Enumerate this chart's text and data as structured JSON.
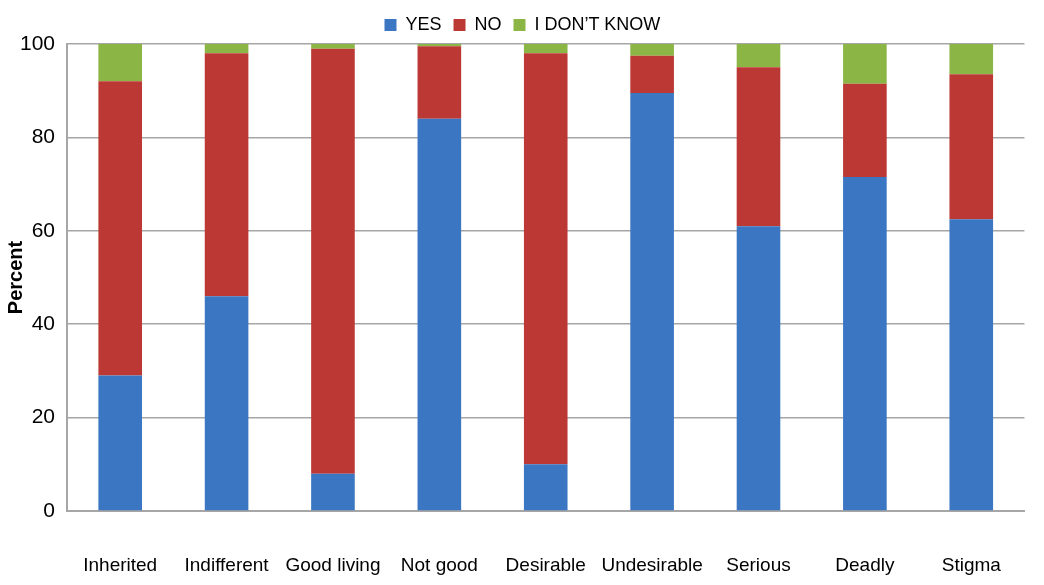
{
  "chart_data": {
    "type": "bar",
    "stacked": true,
    "ylabel": "Percent",
    "categories": [
      "Inherited",
      "Indifferent",
      "Good living",
      "Not good",
      "Desirable",
      "Undesirable",
      "Serious",
      "Deadly",
      "Stigma"
    ],
    "series": [
      {
        "name": "YES",
        "color": "#3a76c2",
        "values": [
          29,
          46,
          8,
          84,
          10,
          89.5,
          61,
          71.5,
          62.5
        ]
      },
      {
        "name": "NO",
        "color": "#bb3835",
        "values": [
          63,
          52,
          91,
          15.5,
          88,
          8,
          34,
          20,
          31
        ]
      },
      {
        "name": "I DON’T KNOW",
        "color": "#8bb545",
        "values": [
          8,
          2,
          1,
          0.5,
          2,
          2.5,
          5,
          8.5,
          6.5
        ]
      }
    ],
    "ylim": [
      0,
      100
    ],
    "yticks": [
      0,
      20,
      40,
      60,
      80,
      100
    ],
    "grid": "y",
    "legend": "top"
  }
}
